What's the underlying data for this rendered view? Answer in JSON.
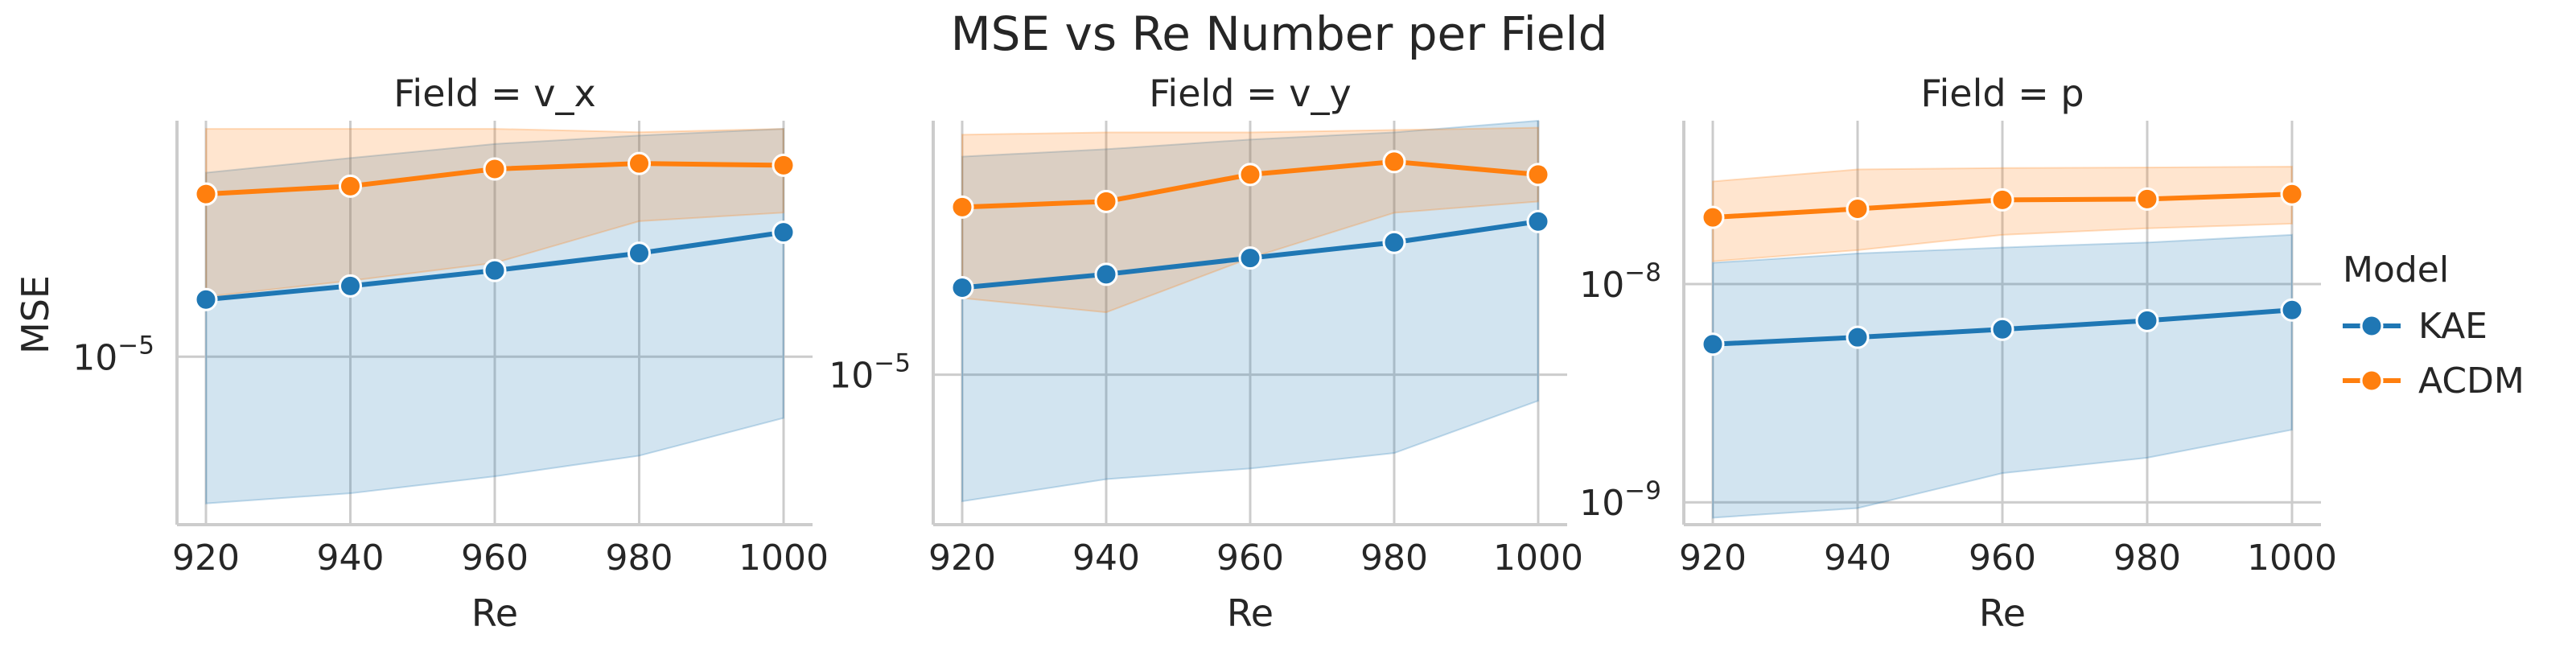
{
  "chart_data": {
    "type": "line",
    "title": "MSE vs Re Number per Field",
    "x": [
      920,
      940,
      960,
      980,
      1000
    ],
    "xlabel": "Re",
    "ylabel": "MSE",
    "yscale": "log",
    "grid": true,
    "colors": {
      "KAE": "#1f77b4",
      "ACDM": "#ff7f0e"
    },
    "legend": {
      "title": "Model",
      "entries": [
        "KAE",
        "ACDM"
      ],
      "placement": "right"
    },
    "x_ticks": [
      "920",
      "940",
      "960",
      "980",
      "1000"
    ],
    "panels": [
      {
        "subtitle": "Field = v_x",
        "ylabel": "MSE",
        "xlabel": "Re",
        "ylim": [
          6e-06,
          2.05e-05
        ],
        "yticks": [
          {
            "value": 1e-05,
            "base": "10",
            "exp": "−5"
          }
        ],
        "series": [
          {
            "name": "KAE",
            "values": [
              1.19e-05,
              1.24e-05,
              1.3e-05,
              1.37e-05,
              1.46e-05
            ],
            "lower": [
              6.4e-06,
              6.6e-06,
              6.95e-06,
              7.4e-06,
              8.3e-06
            ],
            "upper": [
              1.75e-05,
              1.83e-05,
              1.91e-05,
              1.96e-05,
              2e-05
            ]
          },
          {
            "name": "ACDM",
            "values": [
              1.64e-05,
              1.68e-05,
              1.77e-05,
              1.8e-05,
              1.79e-05
            ],
            "lower": [
              1.2e-05,
              1.26e-05,
              1.33e-05,
              1.51e-05,
              1.55e-05
            ],
            "upper": [
              2e-05,
              2e-05,
              2e-05,
              1.98e-05,
              2e-05
            ]
          }
        ]
      },
      {
        "subtitle": "Field = v_y",
        "ylabel": "",
        "xlabel": "Re",
        "ylim": [
          7e-06,
          1.83e-05
        ],
        "yticks": [
          {
            "value": 1e-05,
            "base": "10",
            "exp": "−5"
          }
        ],
        "series": [
          {
            "name": "KAE",
            "values": [
              1.23e-05,
              1.27e-05,
              1.32e-05,
              1.37e-05,
              1.44e-05
            ],
            "lower": [
              7.4e-06,
              7.8e-06,
              8e-06,
              8.3e-06,
              9.4e-06
            ],
            "upper": [
              1.68e-05,
              1.71e-05,
              1.75e-05,
              1.78e-05,
              1.83e-05
            ]
          },
          {
            "name": "ACDM",
            "values": [
              1.49e-05,
              1.51e-05,
              1.61e-05,
              1.66e-05,
              1.61e-05
            ],
            "lower": [
              1.2e-05,
              1.16e-05,
              1.32e-05,
              1.47e-05,
              1.51e-05
            ],
            "upper": [
              1.77e-05,
              1.78e-05,
              1.78e-05,
              1.79e-05,
              1.8e-05
            ]
          }
        ]
      },
      {
        "subtitle": "Field = p",
        "ylabel": "",
        "xlabel": "Re",
        "ylim": [
          7.9e-10,
          5.6e-08
        ],
        "yticks": [
          {
            "value": 1e-09,
            "base": "10",
            "exp": "−9"
          },
          {
            "value": 1e-08,
            "base": "10",
            "exp": "−8"
          }
        ],
        "series": [
          {
            "name": "KAE",
            "values": [
              5.3e-09,
              5.7e-09,
              6.2e-09,
              6.8e-09,
              7.6e-09
            ],
            "lower": [
              8.5e-10,
              9.4e-10,
              1.36e-09,
              1.6e-09,
              2.15e-09
            ],
            "upper": [
              1.25e-08,
              1.38e-08,
              1.47e-08,
              1.55e-08,
              1.68e-08
            ]
          },
          {
            "name": "ACDM",
            "values": [
              2.02e-08,
              2.21e-08,
              2.43e-08,
              2.45e-08,
              2.58e-08
            ],
            "lower": [
              1.27e-08,
              1.43e-08,
              1.68e-08,
              1.8e-08,
              1.89e-08
            ],
            "upper": [
              2.95e-08,
              3.35e-08,
              3.4e-08,
              3.42e-08,
              3.45e-08
            ]
          }
        ]
      }
    ]
  }
}
